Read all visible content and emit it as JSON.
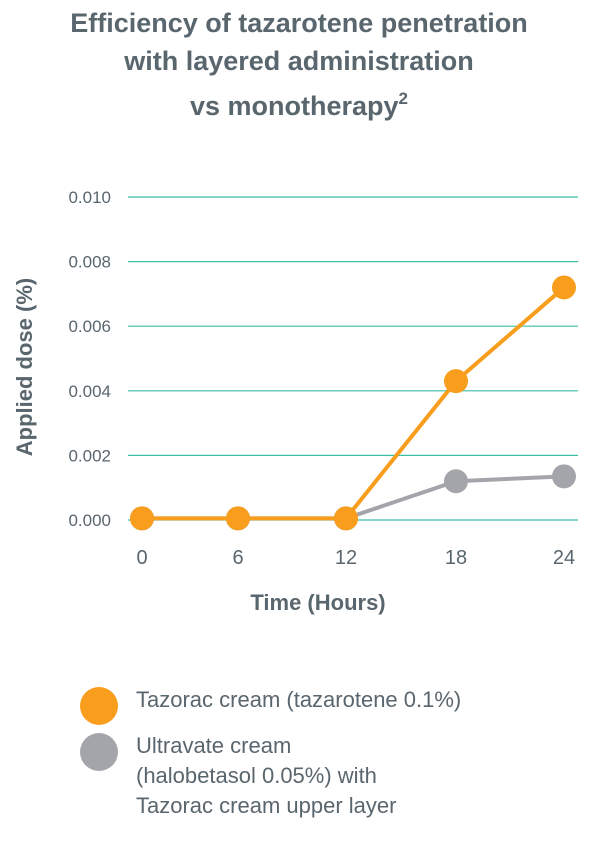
{
  "title": {
    "line1": "Efficiency of tazarotene penetration",
    "line2": "with layered administration",
    "line3": "vs monotherapy",
    "superscript": "2"
  },
  "chart_data": {
    "type": "line",
    "xlabel": "Time (Hours)",
    "ylabel": "Applied dose (%)",
    "x": [
      0,
      6,
      12,
      18,
      24
    ],
    "x_tick_labels": [
      "0",
      "6",
      "12",
      "18",
      "24"
    ],
    "y_tick_labels": [
      "0.000",
      "0.002",
      "0.004",
      "0.006",
      "0.008",
      "0.010"
    ],
    "y_ticks": [
      0,
      0.002,
      0.004,
      0.006,
      0.008,
      0.01
    ],
    "ylim": [
      0,
      0.01
    ],
    "grid": "horizontal",
    "series": [
      {
        "name": "Tazorac cream (tazarotene 0.1%)",
        "color": "#f89d1c",
        "values": [
          5e-05,
          5e-05,
          5e-05,
          0.0043,
          0.0072
        ]
      },
      {
        "name": "Ultravate cream\n(halobetasol 0.05%) with\nTazorac cream upper layer",
        "color": "#a4a5aa",
        "values": [
          5e-05,
          5e-05,
          5e-05,
          0.0012,
          0.00135
        ]
      }
    ],
    "grid_color": "#3bbfa7",
    "legend_placement": "bottom"
  }
}
